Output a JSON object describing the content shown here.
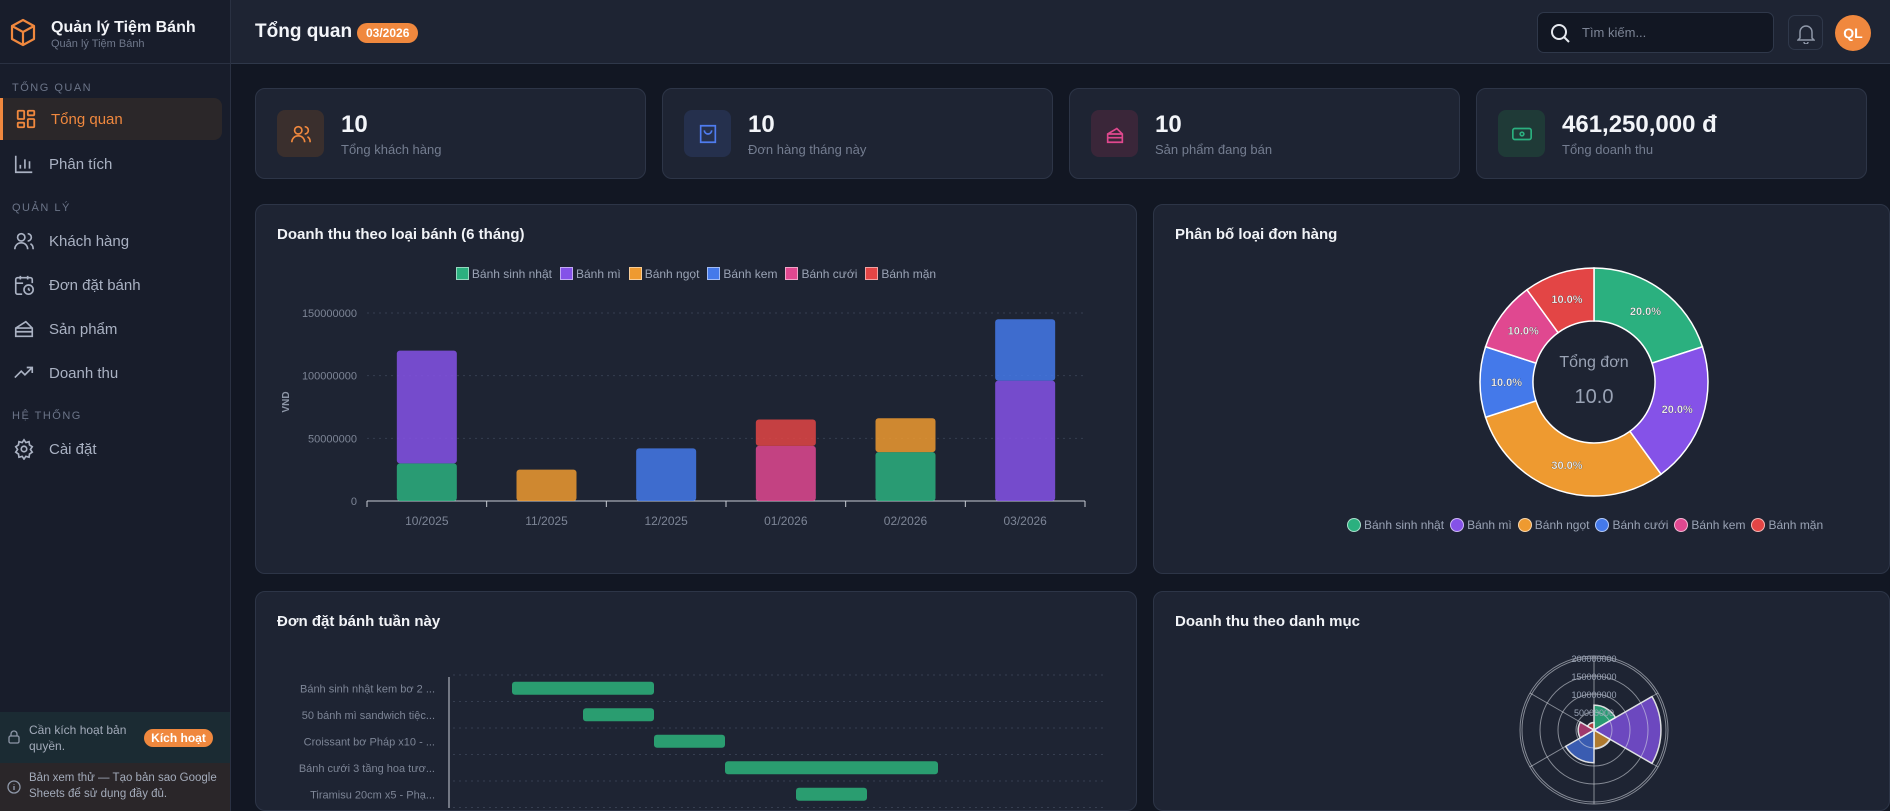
{
  "app": {
    "title": "Quản lý Tiệm Bánh",
    "subtitle": "Quản lý Tiệm Bánh"
  },
  "sidebar": {
    "sections": [
      {
        "label": "TỔNG QUAN",
        "items": [
          {
            "label": "Tổng quan",
            "icon": "grid-icon",
            "active": true
          },
          {
            "label": "Phân tích",
            "icon": "bar-chart-icon"
          }
        ]
      },
      {
        "label": "QUẢN LÝ",
        "items": [
          {
            "label": "Khách hàng",
            "icon": "users-icon"
          },
          {
            "label": "Đơn đặt bánh",
            "icon": "calendar-clock-icon"
          },
          {
            "label": "Sản phẩm",
            "icon": "cake-icon"
          },
          {
            "label": "Doanh thu",
            "icon": "trending-up-icon"
          }
        ]
      },
      {
        "label": "HỆ THỐNG",
        "items": [
          {
            "label": "Cài đặt",
            "icon": "gear-icon"
          }
        ]
      }
    ],
    "license": {
      "text": "Cần kích hoạt bản quyền.",
      "button": "Kích hoạt"
    },
    "trial": {
      "text": "Bản xem thử — Tạo bản sao Google Sheets để sử dụng đầy đủ."
    }
  },
  "header": {
    "title": "Tổng quan",
    "badge": "03/2026",
    "search_placeholder": "Tìm kiếm...",
    "avatar": "QL"
  },
  "stats": [
    {
      "value": "10",
      "label": "Tổng khách hàng",
      "icon": "users-icon",
      "color": "#f0883e"
    },
    {
      "value": "10",
      "label": "Đơn hàng tháng này",
      "icon": "shopping-bag-icon",
      "color": "#4f7cf0"
    },
    {
      "value": "10",
      "label": "Sản phẩm đang bán",
      "icon": "cake-icon",
      "color": "#e0488e"
    },
    {
      "value": "461,250,000 đ",
      "label": "Tổng doanh thu",
      "icon": "banknote-icon",
      "color": "#2bb07f"
    }
  ],
  "chart_data": [
    {
      "type": "bar",
      "stacked": true,
      "title": "Doanh thu theo loại bánh (6 tháng)",
      "ylabel": "VND",
      "xlabel": "",
      "ylim": [
        0,
        150000000
      ],
      "yticks": [
        "0",
        "50000000",
        "100000000",
        "150000000"
      ],
      "grid": true,
      "legend": "top",
      "categories": [
        "10/2025",
        "11/2025",
        "12/2025",
        "01/2026",
        "02/2026",
        "03/2026"
      ],
      "series": [
        {
          "name": "Bánh sinh nhật",
          "color": "#2bb07f",
          "values": [
            30000000,
            0,
            0,
            0,
            39000000,
            0
          ]
        },
        {
          "name": "Bánh mì",
          "color": "#8552e8",
          "values": [
            90000000,
            0,
            0,
            0,
            0,
            96000000
          ]
        },
        {
          "name": "Bánh ngọt",
          "color": "#ee9a30",
          "values": [
            0,
            25000000,
            0,
            0,
            27000000,
            0
          ]
        },
        {
          "name": "Bánh kem",
          "color": "#4479ea",
          "values": [
            0,
            0,
            42000000,
            0,
            0,
            49000000
          ]
        },
        {
          "name": "Bánh cưới",
          "color": "#e04890",
          "values": [
            0,
            0,
            0,
            44000000,
            0,
            0
          ]
        },
        {
          "name": "Bánh mặn",
          "color": "#e34545",
          "values": [
            0,
            0,
            0,
            21000000,
            0,
            0
          ]
        }
      ]
    },
    {
      "type": "pie",
      "donut": true,
      "title": "Phân bố loại đơn hàng",
      "center_label": "Tổng đơn",
      "center_value": "10.0",
      "legend": "bottom",
      "slices": [
        {
          "name": "Bánh sinh nhật",
          "value": 20,
          "label": "20.0%",
          "color": "#2bb07f"
        },
        {
          "name": "Bánh mì",
          "value": 20,
          "label": "20.0%",
          "color": "#8552e8"
        },
        {
          "name": "Bánh ngọt",
          "value": 30,
          "label": "30.0%",
          "color": "#ee9a30"
        },
        {
          "name": "Bánh cưới",
          "value": 10,
          "label": "10.0%",
          "color": "#4479ea"
        },
        {
          "name": "Bánh kem",
          "value": 10,
          "label": "10.0%",
          "color": "#e04890"
        },
        {
          "name": "Bánh mặn",
          "value": 10,
          "label": "10.0%",
          "color": "#e34545"
        }
      ]
    },
    {
      "type": "bar",
      "orientation": "horizontal",
      "title": "Đơn đặt bánh tuần này",
      "rows": [
        {
          "label": "Bánh sinh nhật kem bơ 2 ...",
          "start": 0,
          "end": 2
        },
        {
          "label": "50 bánh mì sandwich tiệc...",
          "start": 1,
          "end": 2
        },
        {
          "label": "Croissant bơ Pháp x10 - ...",
          "start": 2,
          "end": 3
        },
        {
          "label": "Bánh cưới 3 tầng hoa tươ...",
          "start": 3,
          "end": 6
        },
        {
          "label": "Tiramisu 20cm x5 - Phạ...",
          "start": 4,
          "end": 5
        }
      ],
      "color": "#2a9d70"
    },
    {
      "type": "polarArea",
      "title": "Doanh thu theo danh mục",
      "rlim": [
        0,
        200000000
      ],
      "rticks": [
        "50000000",
        "100000000",
        "150000000",
        "200000000"
      ],
      "slices": [
        {
          "name": "Bánh sinh nhật",
          "value": 69000000,
          "color": "#2bb07f"
        },
        {
          "name": "Bánh mì",
          "value": 186000000,
          "color": "#7a4fd8"
        },
        {
          "name": "Bánh ngọt",
          "value": 52000000,
          "color": "#c98a30"
        },
        {
          "name": "Bánh kem",
          "value": 91000000,
          "color": "#3f66c8"
        },
        {
          "name": "Bánh cưới",
          "value": 44000000,
          "color": "#b83f78"
        },
        {
          "name": "Bánh mặn",
          "value": 21000000,
          "color": "#c84040"
        }
      ]
    }
  ]
}
